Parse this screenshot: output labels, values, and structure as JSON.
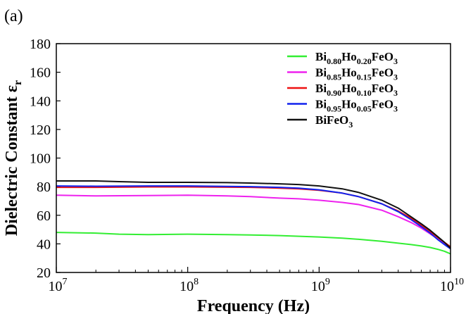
{
  "panel_label": "(a)",
  "chart_data": {
    "type": "line",
    "xlabel": "Frequency (Hz)",
    "ylabel": "Dielectric Constant",
    "ylabel_symbol": "ε",
    "ylabel_symbol_sub": "r",
    "x_scale": "log",
    "xlim": [
      10000000,
      10000000000
    ],
    "ylim": [
      20,
      180
    ],
    "y_ticks": [
      "20",
      "40",
      "60",
      "80",
      "100",
      "120",
      "140",
      "160",
      "180"
    ],
    "x_ticks": [
      {
        "base": "10",
        "exp": "7"
      },
      {
        "base": "10",
        "exp": "8"
      },
      {
        "base": "10",
        "exp": "9"
      },
      {
        "base": "10",
        "exp": "10"
      }
    ],
    "grid": false,
    "legend_position": "top-right",
    "series": [
      {
        "name": "Bi0.80Ho0.20FeO3",
        "label_parts": [
          {
            "t": "Bi"
          },
          {
            "s": "0.80"
          },
          {
            "t": "Ho"
          },
          {
            "s": "0.20"
          },
          {
            "t": "FeO"
          },
          {
            "s": "3"
          }
        ],
        "color": "#33ee33",
        "points": [
          [
            10000000,
            48
          ],
          [
            20000000,
            47.5
          ],
          [
            30000000,
            46.8
          ],
          [
            50000000,
            46.5
          ],
          [
            100000000,
            46.8
          ],
          [
            200000000,
            46.5
          ],
          [
            300000000,
            46.2
          ],
          [
            500000000,
            45.8
          ],
          [
            1000000000,
            44.8
          ],
          [
            1500000000,
            44
          ],
          [
            2000000000,
            43.2
          ],
          [
            3000000000,
            41.8
          ],
          [
            4000000000,
            40.5
          ],
          [
            5000000000,
            39.5
          ],
          [
            6000000000,
            38.5
          ],
          [
            7000000000,
            37.5
          ],
          [
            8000000000,
            36.2
          ],
          [
            9000000000,
            34.8
          ],
          [
            10000000000,
            33
          ]
        ]
      },
      {
        "name": "Bi0.85Ho0.15FeO3",
        "label_parts": [
          {
            "t": "Bi"
          },
          {
            "s": "0.85"
          },
          {
            "t": "Ho"
          },
          {
            "s": "0.15"
          },
          {
            "t": "FeO"
          },
          {
            "s": "3"
          }
        ],
        "color": "#ee22ee",
        "points": [
          [
            10000000,
            74
          ],
          [
            20000000,
            73.5
          ],
          [
            50000000,
            73.8
          ],
          [
            100000000,
            74
          ],
          [
            200000000,
            73.5
          ],
          [
            300000000,
            73
          ],
          [
            500000000,
            72
          ],
          [
            700000000,
            71.5
          ],
          [
            1000000000,
            70.5
          ],
          [
            1500000000,
            69
          ],
          [
            2000000000,
            67.5
          ],
          [
            3000000000,
            63.5
          ],
          [
            4000000000,
            59
          ],
          [
            5000000000,
            55
          ],
          [
            6000000000,
            51
          ],
          [
            7000000000,
            47
          ],
          [
            8000000000,
            43.5
          ],
          [
            9000000000,
            40
          ],
          [
            10000000000,
            37
          ]
        ]
      },
      {
        "name": "Bi0.90Ho0.10FeO3",
        "label_parts": [
          {
            "t": "Bi"
          },
          {
            "s": "0.90"
          },
          {
            "t": "Ho"
          },
          {
            "s": "0.10"
          },
          {
            "t": "FeO"
          },
          {
            "s": "3"
          }
        ],
        "color": "#ee1111",
        "points": [
          [
            10000000,
            79.5
          ],
          [
            20000000,
            79.5
          ],
          [
            50000000,
            79.8
          ],
          [
            100000000,
            79.8
          ],
          [
            200000000,
            79.6
          ],
          [
            300000000,
            79.5
          ],
          [
            500000000,
            79
          ],
          [
            700000000,
            78.5
          ],
          [
            1000000000,
            77.5
          ],
          [
            1500000000,
            75.5
          ],
          [
            2000000000,
            73
          ],
          [
            3000000000,
            68
          ],
          [
            4000000000,
            63
          ],
          [
            5000000000,
            58
          ],
          [
            6000000000,
            53
          ],
          [
            7000000000,
            48.5
          ],
          [
            8000000000,
            44.5
          ],
          [
            9000000000,
            41
          ],
          [
            10000000000,
            38
          ]
        ]
      },
      {
        "name": "Bi0.95Ho0.05FeO3",
        "label_parts": [
          {
            "t": "Bi"
          },
          {
            "s": "0.95"
          },
          {
            "t": "Ho"
          },
          {
            "s": "0.05"
          },
          {
            "t": "FeO"
          },
          {
            "s": "3"
          }
        ],
        "color": "#1122ee",
        "points": [
          [
            10000000,
            80.5
          ],
          [
            20000000,
            80.3
          ],
          [
            50000000,
            80.5
          ],
          [
            100000000,
            80.5
          ],
          [
            200000000,
            80.2
          ],
          [
            300000000,
            80
          ],
          [
            500000000,
            79.5
          ],
          [
            700000000,
            79
          ],
          [
            1000000000,
            77.8
          ],
          [
            1500000000,
            75.5
          ],
          [
            2000000000,
            73
          ],
          [
            3000000000,
            68
          ],
          [
            4000000000,
            62.5
          ],
          [
            5000000000,
            57
          ],
          [
            6000000000,
            52
          ],
          [
            7000000000,
            47.5
          ],
          [
            8000000000,
            43
          ],
          [
            9000000000,
            39.5
          ],
          [
            10000000000,
            36.5
          ]
        ]
      },
      {
        "name": "BiFeO3",
        "label_parts": [
          {
            "t": "BiFeO"
          },
          {
            "s": "3"
          }
        ],
        "color": "#111111",
        "points": [
          [
            10000000,
            84
          ],
          [
            20000000,
            84
          ],
          [
            30000000,
            83.5
          ],
          [
            50000000,
            83
          ],
          [
            100000000,
            83
          ],
          [
            200000000,
            82.8
          ],
          [
            300000000,
            82.5
          ],
          [
            500000000,
            82
          ],
          [
            700000000,
            81.5
          ],
          [
            1000000000,
            80.5
          ],
          [
            1500000000,
            78.5
          ],
          [
            2000000000,
            76
          ],
          [
            3000000000,
            70.5
          ],
          [
            4000000000,
            65
          ],
          [
            5000000000,
            59
          ],
          [
            6000000000,
            54
          ],
          [
            7000000000,
            49.5
          ],
          [
            8000000000,
            45
          ],
          [
            9000000000,
            41
          ],
          [
            10000000000,
            37
          ]
        ]
      }
    ]
  }
}
